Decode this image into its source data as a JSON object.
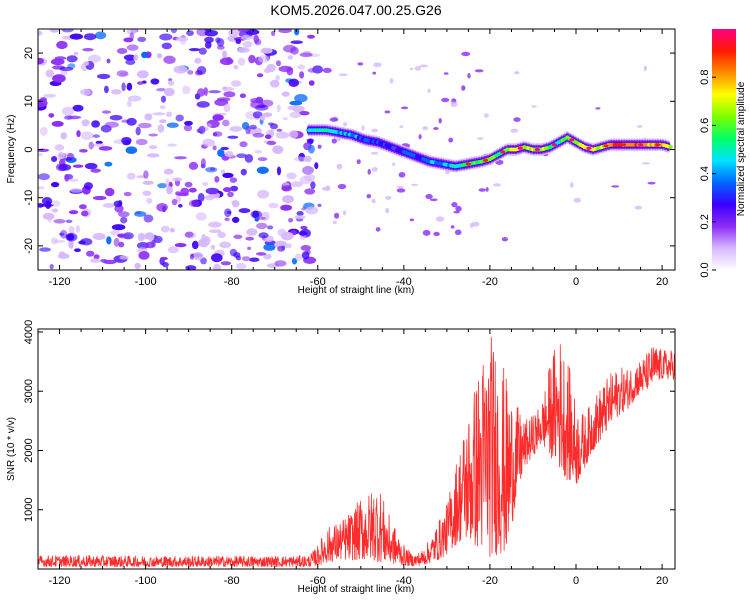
{
  "title": "KOM5.2026.047.00.25.G26",
  "chart_data": [
    {
      "type": "heatmap",
      "title": "KOM5.2026.047.00.25.G26",
      "xlabel": "Height of straight line (km)",
      "ylabel": "Frequency (Hz)",
      "xlim": [
        -125,
        23
      ],
      "ylim": [
        -25,
        25
      ],
      "x_ticks": [
        -120,
        -100,
        -80,
        -60,
        -40,
        -20,
        0,
        20
      ],
      "y_ticks": [
        -20,
        -10,
        0,
        10,
        20
      ],
      "noise_region_x": [
        -125,
        -60
      ],
      "signal_track": {
        "x": [
          -62,
          -58,
          -55,
          -52,
          -49,
          -46,
          -43,
          -40,
          -37,
          -34,
          -31,
          -28,
          -25,
          -22,
          -20,
          -18,
          -16,
          -14,
          -12,
          -10,
          -8,
          -6,
          -4,
          -2,
          0,
          2,
          4,
          6,
          8,
          10,
          12,
          14,
          16,
          18,
          20,
          22
        ],
        "y": [
          4,
          4,
          3.5,
          3,
          2,
          1.5,
          0.5,
          -0.5,
          -1.5,
          -2.5,
          -3,
          -3.5,
          -3,
          -2.5,
          -2,
          -1,
          0,
          0,
          0.5,
          0,
          0,
          0.5,
          1.5,
          2.5,
          1.5,
          0.5,
          0,
          0.5,
          1,
          1,
          1,
          1,
          1,
          1,
          1,
          0.5
        ],
        "amplitude": [
          0.45,
          0.5,
          0.45,
          0.4,
          0.35,
          0.3,
          0.25,
          0.3,
          0.35,
          0.4,
          0.45,
          0.5,
          0.55,
          0.55,
          0.6,
          0.55,
          0.65,
          0.7,
          0.75,
          0.7,
          0.65,
          0.6,
          0.55,
          0.6,
          0.65,
          0.7,
          0.75,
          0.7,
          0.8,
          0.85,
          0.8,
          0.85,
          0.8,
          0.75,
          0.8,
          0.7
        ]
      },
      "colorbar": {
        "label": "Normalized spectral amplitude",
        "range": [
          0.0,
          1.0
        ],
        "ticks": [
          "0.0",
          "0.2",
          "0.4",
          "0.6",
          "0.8"
        ],
        "tick_values": [
          0.0,
          0.2,
          0.4,
          0.6,
          0.8
        ],
        "colormap": [
          "#ffffff",
          "#d7b8ff",
          "#8b2cf5",
          "#3a00ff",
          "#0066ff",
          "#00e5ff",
          "#00ff66",
          "#7dff00",
          "#ffff00",
          "#ff8c00",
          "#ff1a00",
          "#ff0080"
        ]
      }
    },
    {
      "type": "line",
      "xlabel": "Height of straight line (km)",
      "ylabel": "SNR (10 * v/v)",
      "xlim": [
        -125,
        23
      ],
      "ylim": [
        0,
        4050
      ],
      "x_ticks": [
        -120,
        -100,
        -80,
        -60,
        -40,
        -20,
        0,
        20
      ],
      "y_ticks": [
        1000,
        2000,
        3000,
        4000
      ],
      "line_color": "#ff2a2a",
      "envelope": {
        "x": [
          -125,
          -110,
          -100,
          -90,
          -80,
          -70,
          -62,
          -60,
          -58,
          -55,
          -52,
          -50,
          -48,
          -46,
          -44,
          -42,
          -40,
          -38,
          -36,
          -34,
          -32,
          -30,
          -28,
          -26,
          -24,
          -22,
          -20,
          -18,
          -16,
          -14,
          -12,
          -10,
          -8,
          -6,
          -4,
          -2,
          0,
          2,
          4,
          6,
          8,
          10,
          12,
          14,
          16,
          18,
          20,
          23
        ],
        "y_low": [
          40,
          40,
          40,
          40,
          40,
          40,
          40,
          60,
          100,
          150,
          150,
          150,
          150,
          120,
          100,
          80,
          60,
          50,
          60,
          100,
          150,
          250,
          400,
          500,
          400,
          300,
          200,
          250,
          250,
          1100,
          1700,
          1900,
          2100,
          1900,
          1700,
          1500,
          1400,
          1700,
          2000,
          2200,
          2400,
          2600,
          2700,
          2900,
          3000,
          3100,
          3200,
          3200
        ],
        "y_high": [
          230,
          230,
          220,
          220,
          220,
          220,
          230,
          400,
          700,
          800,
          1000,
          1200,
          1300,
          1500,
          1000,
          700,
          400,
          250,
          300,
          500,
          800,
          1100,
          1800,
          2400,
          3000,
          3600,
          4050,
          3800,
          3200,
          2800,
          2500,
          2600,
          2800,
          3500,
          4000,
          3600,
          2800,
          2600,
          2900,
          3100,
          3300,
          3400,
          3400,
          3500,
          3600,
          3800,
          3700,
          3700
        ]
      }
    }
  ]
}
